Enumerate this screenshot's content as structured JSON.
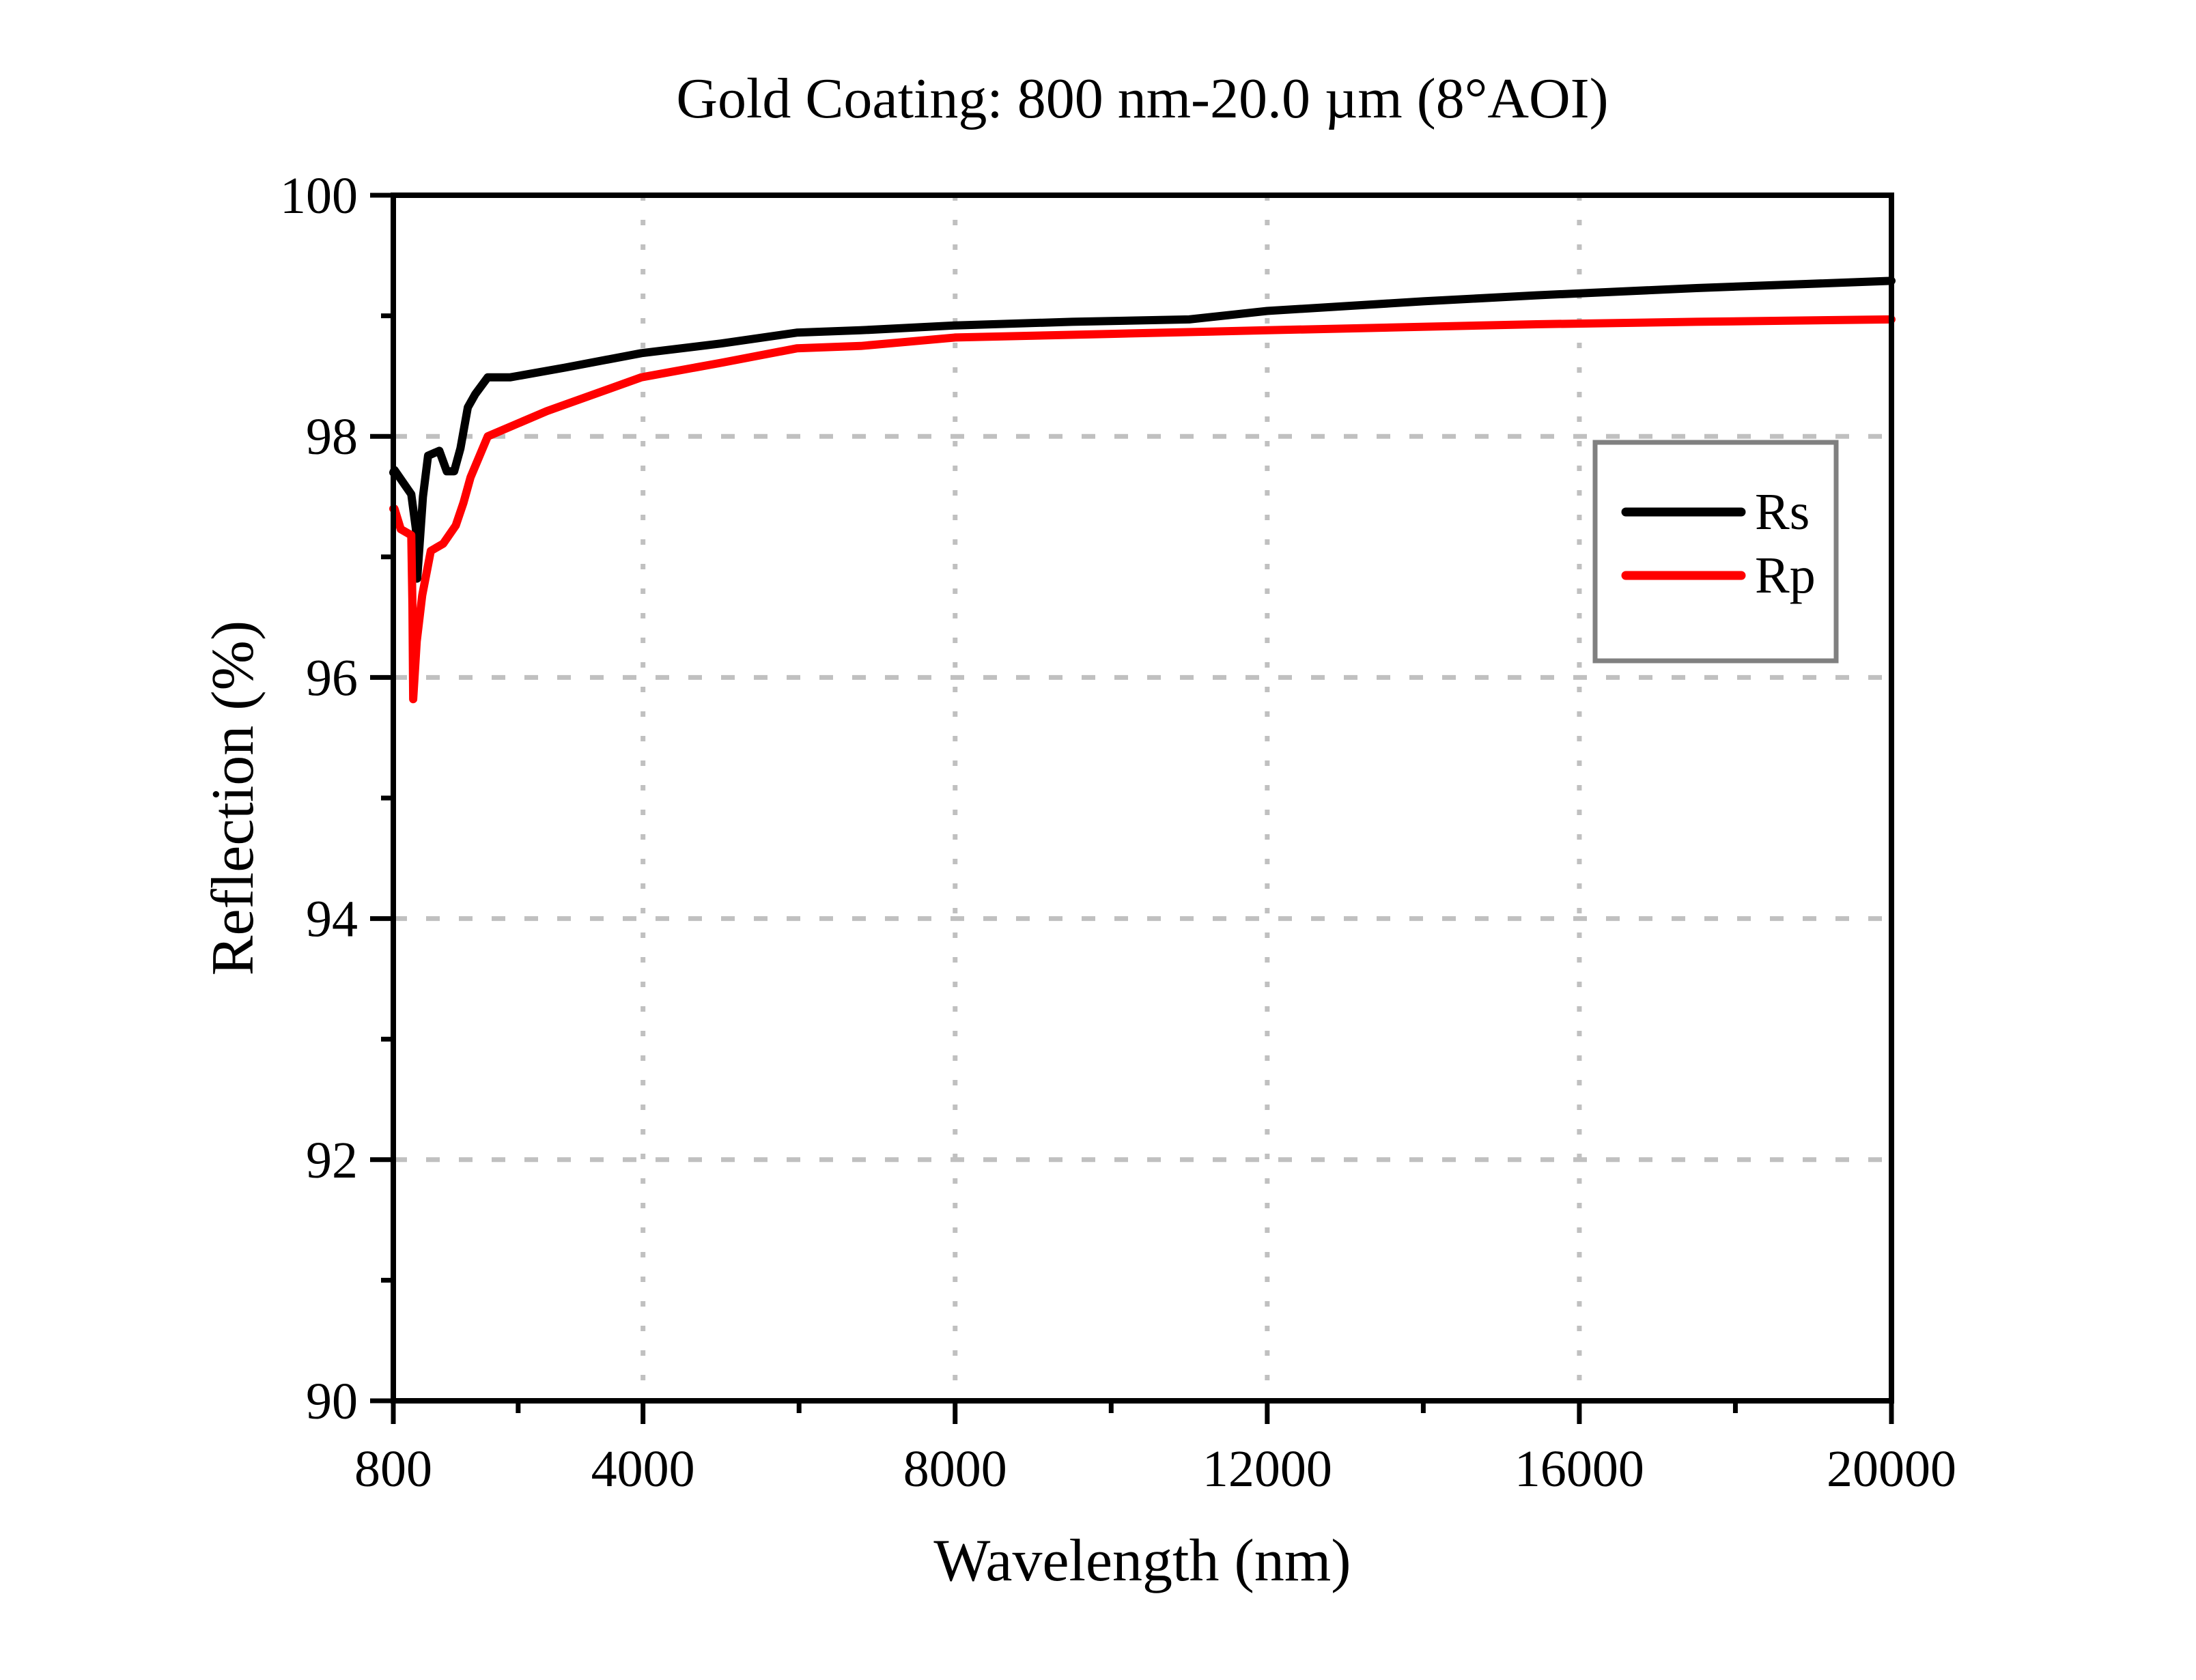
{
  "chart_data": {
    "type": "line",
    "title": "Gold Coating: 800 nm-20.0 µm (8°AOI)",
    "xlabel": "Wavelength (nm)",
    "ylabel": "Reflection (%)",
    "xlim": [
      800,
      20000
    ],
    "ylim": [
      90,
      100
    ],
    "x_ticks": [
      800,
      4000,
      8000,
      12000,
      16000,
      20000
    ],
    "x_tick_labels": [
      "800",
      "4000",
      "8000",
      "12000",
      "16000",
      "20000"
    ],
    "x_minor_ticks": [
      2400,
      6000,
      10000,
      14000,
      18000
    ],
    "y_ticks": [
      90,
      92,
      94,
      96,
      98,
      100
    ],
    "y_tick_labels": [
      "90",
      "92",
      "94",
      "96",
      "98",
      "100"
    ],
    "y_minor_ticks": [
      91,
      93,
      95,
      97,
      99
    ],
    "grid": true,
    "legend": {
      "position": "right",
      "entries": [
        "Rs",
        "Rp"
      ]
    },
    "series": [
      {
        "name": "Rs",
        "color": "#000000",
        "x": [
          800,
          815,
          1030,
          1090,
          1106,
          1180,
          1245,
          1390,
          1485,
          1580,
          1660,
          1755,
          1850,
          2010,
          2300,
          3000,
          3980,
          5000,
          5970,
          6790,
          8000,
          9500,
          11000,
          12000,
          14000,
          15450,
          17500,
          20000
        ],
        "y": [
          97.7,
          97.72,
          97.52,
          97.23,
          96.82,
          97.5,
          97.84,
          97.88,
          97.71,
          97.71,
          97.9,
          98.24,
          98.35,
          98.49,
          98.49,
          98.57,
          98.69,
          98.77,
          98.86,
          98.88,
          98.92,
          98.95,
          98.97,
          99.04,
          99.12,
          99.17,
          99.23,
          99.29
        ]
      },
      {
        "name": "Rp",
        "color": "#ff0000",
        "x": [
          800,
          815,
          895,
          1030,
          1045,
          1055,
          1100,
          1170,
          1280,
          1440,
          1600,
          1700,
          1790,
          2010,
          2770,
          3980,
          5000,
          5970,
          6790,
          8000,
          10000,
          12000,
          15450,
          17500,
          20000
        ],
        "y": [
          97.4,
          97.4,
          97.23,
          97.18,
          96.6,
          95.82,
          96.3,
          96.68,
          97.05,
          97.11,
          97.26,
          97.45,
          97.66,
          98.0,
          98.21,
          98.49,
          98.61,
          98.73,
          98.75,
          98.82,
          98.85,
          98.88,
          98.93,
          98.95,
          98.97
        ]
      }
    ]
  }
}
